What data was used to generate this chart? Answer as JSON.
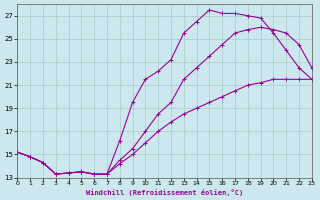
{
  "xlabel": "Windchill (Refroidissement éolien,°C)",
  "bg_color": "#cce8ee",
  "grid_color": "#a8cec8",
  "line_color": "#990099",
  "xlim": [
    0,
    23
  ],
  "ylim": [
    13,
    28
  ],
  "xticks": [
    0,
    1,
    2,
    3,
    4,
    5,
    6,
    7,
    8,
    9,
    10,
    11,
    12,
    13,
    14,
    15,
    16,
    17,
    18,
    19,
    20,
    21,
    22,
    23
  ],
  "yticks": [
    13,
    15,
    17,
    19,
    21,
    23,
    25,
    27
  ],
  "s1x": [
    0,
    1,
    2,
    3,
    4,
    5,
    6,
    7,
    8,
    9,
    10,
    11,
    12,
    13,
    14,
    15,
    16,
    17,
    18,
    19,
    20,
    21,
    22,
    23
  ],
  "s1y": [
    15.2,
    14.8,
    14.3,
    13.3,
    13.4,
    13.5,
    13.3,
    13.3,
    16.2,
    19.5,
    21.5,
    22.2,
    23.2,
    25.5,
    26.5,
    27.5,
    27.2,
    27.2,
    27.0,
    26.8,
    25.5,
    24.0,
    22.5,
    21.5
  ],
  "s2x": [
    0,
    1,
    2,
    3,
    4,
    5,
    6,
    7,
    8,
    9,
    10,
    11,
    12,
    13,
    14,
    15,
    16,
    17,
    18,
    19,
    20,
    21,
    22,
    23
  ],
  "s2y": [
    15.2,
    14.8,
    14.3,
    13.3,
    13.4,
    13.5,
    13.3,
    13.3,
    14.5,
    15.5,
    17.0,
    18.5,
    19.5,
    21.5,
    22.5,
    23.5,
    24.5,
    25.5,
    25.8,
    26.0,
    25.8,
    25.5,
    24.5,
    22.5
  ],
  "s3x": [
    0,
    1,
    2,
    3,
    4,
    5,
    6,
    7,
    8,
    9,
    10,
    11,
    12,
    13,
    14,
    15,
    16,
    17,
    18,
    19,
    20,
    21,
    22,
    23
  ],
  "s3y": [
    15.2,
    14.8,
    14.3,
    13.3,
    13.4,
    13.5,
    13.3,
    13.3,
    14.2,
    15.0,
    16.0,
    17.0,
    17.8,
    18.5,
    19.0,
    19.5,
    20.0,
    20.5,
    21.0,
    21.2,
    21.5,
    21.5,
    21.5,
    21.5
  ]
}
